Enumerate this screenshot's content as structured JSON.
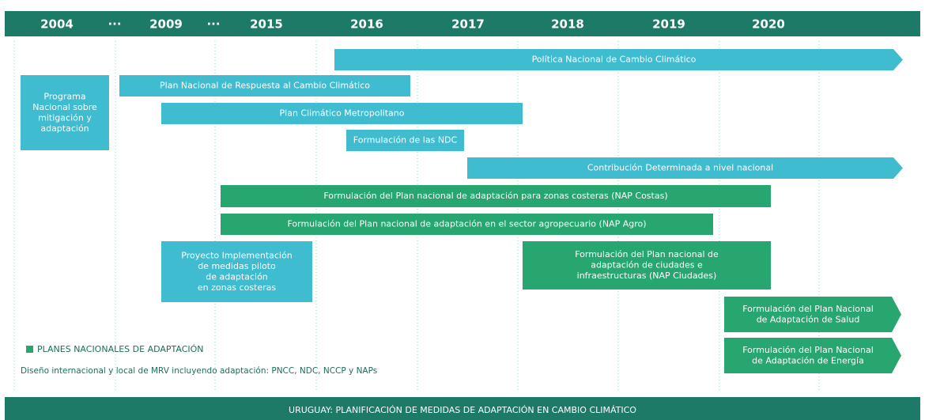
{
  "header": {
    "years": [
      "2004",
      "···",
      "2009",
      "···",
      "2015",
      "2016",
      "2017",
      "2018",
      "2019",
      "2020"
    ],
    "color": "#1d7a66"
  },
  "items": [
    {
      "lines": [
        "Política Nacional de Cambio Climático"
      ],
      "color": "#3fbccf"
    },
    {
      "lines": [
        "Programa",
        "Nacional sobre",
        "mitigación y",
        "adaptación"
      ],
      "color": "#3fbccf"
    },
    {
      "lines": [
        "Plan Nacional de Respuesta al Cambio Climático"
      ],
      "color": "#3fbccf"
    },
    {
      "lines": [
        "Plan Climático Metropolitano"
      ],
      "color": "#3fbccf"
    },
    {
      "lines": [
        "Formulación de las NDC"
      ],
      "color": "#3fbccf"
    },
    {
      "lines": [
        "Contribución Determinada a nivel nacional"
      ],
      "color": "#3fbccf"
    },
    {
      "lines": [
        "Formulación del Plan nacional de adaptación para zonas costeras (NAP Costas)"
      ],
      "color": "#27a66f"
    },
    {
      "lines": [
        "Formulación del Plan nacional de adaptación en el sector agropecuario (NAP Agro)"
      ],
      "color": "#27a66f"
    },
    {
      "lines": [
        "Proyecto Implementación",
        "de medidas piloto",
        "de adaptación",
        "en zonas costeras"
      ],
      "color": "#3fbccf"
    },
    {
      "lines": [
        "Formulación del Plan nacional de",
        "adaptación de ciudades e",
        "infraestructuras (NAP Ciudades)"
      ],
      "color": "#27a66f"
    },
    {
      "lines": [
        "Formulación del Plan Nacional",
        "de Adaptación de Salud"
      ],
      "color": "#27a66f"
    },
    {
      "lines": [
        "Formulación del Plan Nacional",
        "de Adaptación de Energía"
      ],
      "color": "#27a66f"
    }
  ],
  "legend": {
    "label": "PLANES NACIONALES DE ADAPTACIÓN",
    "color": "#27a66f"
  },
  "note": "Diseño internacional y local de MRV incluyendo adaptación: PNCC, NDC, NCCP y NAPs",
  "footer": "URUGUAY: PLANIFICACIÓN DE MEDIDAS DE ADAPTACIÓN EN CAMBIO CLIMÁTICO"
}
